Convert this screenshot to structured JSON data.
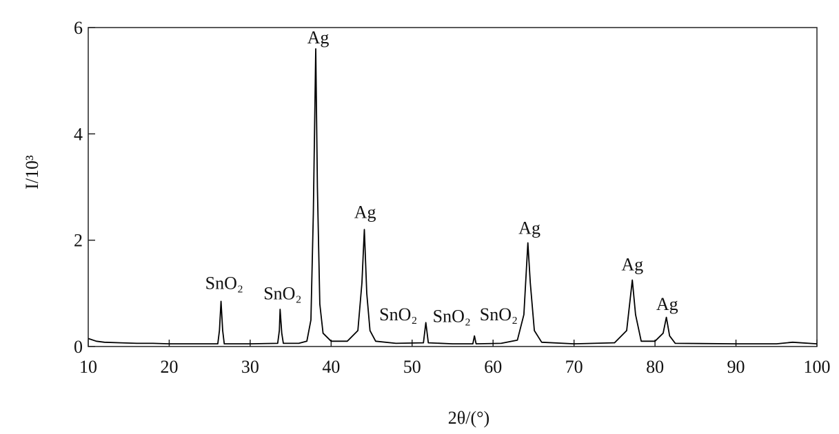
{
  "chart_data": {
    "type": "line",
    "x_label": "2θ/(°)",
    "y_label": "I/10³",
    "xlim": [
      10,
      100
    ],
    "xticks": [
      10,
      20,
      30,
      40,
      50,
      60,
      70,
      80,
      90,
      100
    ],
    "ylim": [
      0,
      6
    ],
    "yticks": [
      0,
      2,
      4,
      6
    ],
    "grid": false,
    "series": [
      {
        "color": "#000000",
        "x": [
          10,
          11,
          12,
          14,
          16,
          18,
          20,
          22,
          24,
          26,
          26.2,
          26.4,
          26.6,
          26.8,
          30,
          33.4,
          33.6,
          33.7,
          33.9,
          34.1,
          36,
          37,
          37.5,
          37.8,
          38.1,
          38.3,
          38.6,
          39,
          40,
          42,
          43.3,
          43.8,
          44.1,
          44.4,
          44.8,
          45.5,
          48,
          51.4,
          51.7,
          52,
          55,
          57.5,
          57.7,
          57.9,
          61,
          63,
          63.8,
          64.3,
          64.6,
          65.1,
          66,
          70,
          75,
          76.5,
          77.2,
          77.6,
          78.3,
          80,
          81,
          81.4,
          81.8,
          82.5,
          90,
          95,
          97,
          100
        ],
        "values": [
          0.15,
          0.1,
          0.08,
          0.07,
          0.06,
          0.06,
          0.05,
          0.05,
          0.05,
          0.05,
          0.3,
          0.85,
          0.3,
          0.05,
          0.05,
          0.06,
          0.3,
          0.7,
          0.25,
          0.06,
          0.06,
          0.1,
          0.5,
          2.5,
          5.6,
          3.0,
          0.8,
          0.25,
          0.1,
          0.1,
          0.3,
          1.2,
          2.2,
          1.0,
          0.3,
          0.1,
          0.06,
          0.07,
          0.45,
          0.07,
          0.05,
          0.05,
          0.2,
          0.05,
          0.06,
          0.12,
          0.6,
          1.95,
          1.2,
          0.3,
          0.08,
          0.05,
          0.07,
          0.3,
          1.25,
          0.6,
          0.1,
          0.1,
          0.25,
          0.55,
          0.2,
          0.06,
          0.05,
          0.05,
          0.08,
          0.05
        ]
      }
    ],
    "annotations": [
      {
        "text": "SnO₂",
        "x": 26.8,
        "y": 1.08
      },
      {
        "text": "SnO₂",
        "x": 34.0,
        "y": 0.89
      },
      {
        "text": "Ag",
        "x": 38.4,
        "y": 5.7
      },
      {
        "text": "Ag",
        "x": 44.2,
        "y": 2.42
      },
      {
        "text": "SnO₂",
        "x": 48.3,
        "y": 0.49
      },
      {
        "text": "SnO₂",
        "x": 54.9,
        "y": 0.46
      },
      {
        "text": "SnO₂",
        "x": 60.7,
        "y": 0.49
      },
      {
        "text": "Ag",
        "x": 64.5,
        "y": 2.12
      },
      {
        "text": "Ag",
        "x": 77.2,
        "y": 1.43
      },
      {
        "text": "Ag",
        "x": 81.5,
        "y": 0.69
      }
    ]
  }
}
